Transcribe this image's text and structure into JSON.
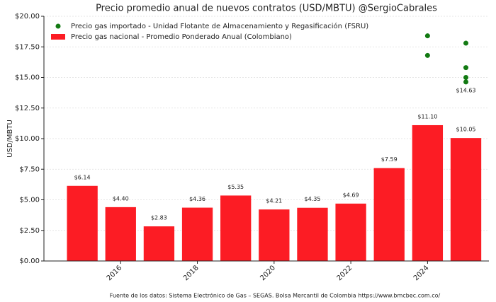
{
  "chart_data": {
    "type": "bar",
    "title": "Precio promedio anual de nuevos contratos (USD/MBTU) @SergioCabrales",
    "ylabel": "USD/MBTU",
    "source": "Fuente de los datos: Sistema Electrónico de Gas – SEGAS. Bolsa Mercantil de Colombia https://www.bmcbec.com.co/",
    "xlim": [
      2014,
      2025.6
    ],
    "xticks": [
      2016,
      2018,
      2020,
      2022,
      2024
    ],
    "ylim": [
      0,
      20
    ],
    "yticks": [
      {
        "value": 0,
        "label": "$0.00"
      },
      {
        "value": 2.5,
        "label": "$2.50"
      },
      {
        "value": 5,
        "label": "$5.00"
      },
      {
        "value": 7.5,
        "label": "$7.50"
      },
      {
        "value": 10,
        "label": "$10.00"
      },
      {
        "value": 12.5,
        "label": "$12.50"
      },
      {
        "value": 15,
        "label": "$15.00"
      },
      {
        "value": 17.5,
        "label": "$17.50"
      },
      {
        "value": 20,
        "label": "$20.00"
      }
    ],
    "grid": true,
    "legend": "upper-left",
    "series": [
      {
        "name": "Precio gas importado - Unidad Flotante de Almacenamiento y Regasificación (FSRU)",
        "type": "scatter",
        "color": "#137a13",
        "x": [
          2024,
          2024,
          2025,
          2025,
          2025,
          2025
        ],
        "values": [
          18.4,
          16.8,
          17.8,
          15.8,
          15.0,
          14.63
        ],
        "value_labels": [
          null,
          null,
          null,
          null,
          null,
          "$14.63"
        ]
      },
      {
        "name": "Precio gas nacional - Promedio Ponderado Anual (Colombiano)",
        "type": "bar",
        "color": "#fc1c24",
        "x": [
          2015,
          2016,
          2017,
          2018,
          2019,
          2020,
          2021,
          2022,
          2023,
          2024,
          2025
        ],
        "values": [
          6.14,
          4.4,
          2.83,
          4.36,
          5.35,
          4.21,
          4.35,
          4.69,
          7.59,
          11.1,
          10.05
        ],
        "value_labels": [
          "$6.14",
          "$4.40",
          "$2.83",
          "$4.36",
          "$5.35",
          "$4.21",
          "$4.35",
          "$4.69",
          "$7.59",
          "$11.10",
          "$10.05"
        ]
      }
    ]
  }
}
